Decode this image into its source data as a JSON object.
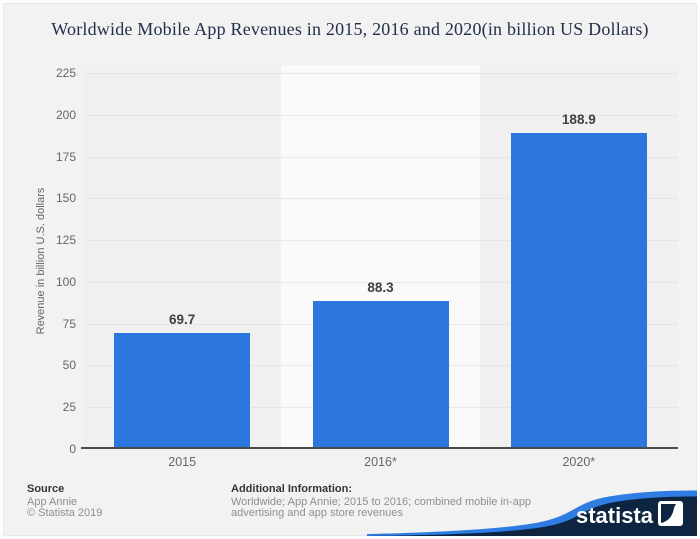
{
  "chart_data": {
    "type": "bar",
    "title": "Worldwide Mobile App Revenues in 2015, 2016 and 2020(in billion US Dollars)",
    "categories": [
      "2015",
      "2016*",
      "2020*"
    ],
    "values": [
      69.7,
      88.3,
      188.9
    ],
    "value_labels": [
      "69.7",
      "88.3",
      "188.9"
    ],
    "xlabel": "",
    "ylabel": "Revenue in billion U.S. dollars",
    "ylim": [
      0,
      225
    ],
    "ytick_step": 25,
    "grid": "horizontal-dotted",
    "legend": "none",
    "bar_color": "#2b77de",
    "band_colors": [
      "#f0f0f0",
      "#fafafa",
      "#f0f0f0"
    ],
    "gridline_color": "#d8d8d8",
    "axis_line_color": "#4b4b4b"
  },
  "footer": {
    "source_label": "Source",
    "source_lines": [
      "App Annie",
      "© Statista 2019"
    ],
    "additional_label": "Additional Information:",
    "additional_lines": [
      "Worldwide; App Annie; 2015 to 2016; combined mobile in-app",
      "advertising and app store revenues"
    ]
  },
  "logo": {
    "wordmark": "statista",
    "navy": "#0d2540",
    "stripe_blue": "#2f7ce3"
  }
}
